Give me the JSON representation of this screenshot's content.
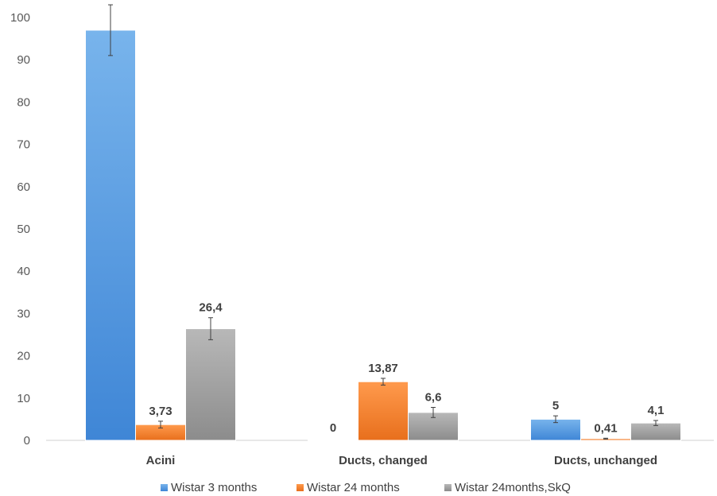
{
  "chart_data": {
    "type": "bar",
    "categories": [
      "Acini",
      "Ducts, changed",
      "Ducts, unchanged"
    ],
    "series": [
      {
        "name": "Wistar 3 months",
        "values": [
          97,
          0,
          5
        ],
        "errors": [
          6,
          0,
          0.8
        ],
        "labels": [
          "97",
          "0",
          "5"
        ],
        "color": "#4a90e2"
      },
      {
        "name": "Wistar 24 months",
        "values": [
          3.73,
          13.87,
          0.41
        ],
        "errors": [
          0.8,
          0.8,
          0.1
        ],
        "labels": [
          "3,73",
          "13,87",
          "0,41"
        ],
        "color": "#f07c2a"
      },
      {
        "name": "Wistar 24months,SkQ",
        "values": [
          26.4,
          6.6,
          4.1
        ],
        "errors": [
          2.6,
          1.2,
          0.6
        ],
        "labels": [
          "26,4",
          "6,6",
          "4,1"
        ],
        "color": "#a0a0a0"
      }
    ],
    "ylim": [
      0,
      100
    ],
    "yticks": [
      "0",
      "10",
      "20",
      "30",
      "40",
      "50",
      "60",
      "70",
      "80",
      "90",
      "100"
    ],
    "grid": false,
    "legend": "bottom"
  }
}
